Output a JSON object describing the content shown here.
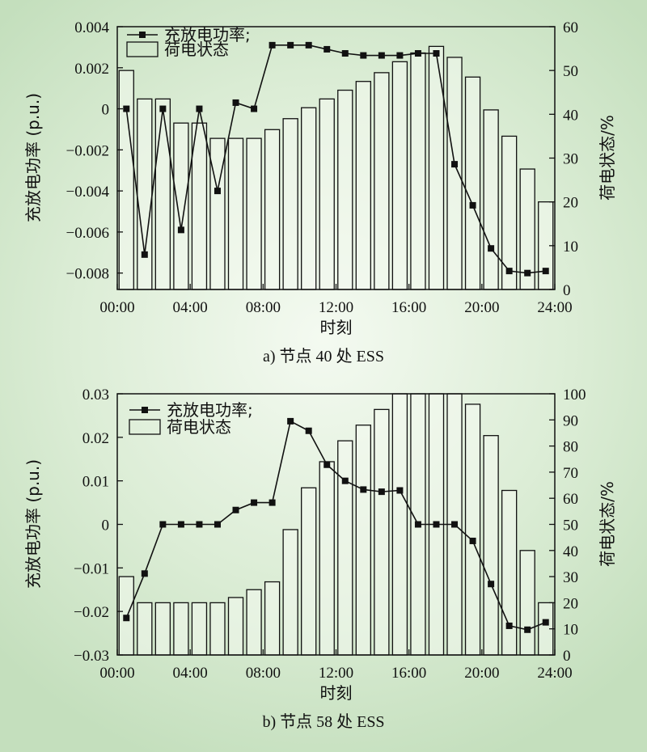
{
  "chart_data": [
    {
      "type": "bar+line",
      "caption": "a) 节点 40 处 ESS",
      "xlabel": "时刻",
      "ylabel_left": "充放电功率 (p.u.)",
      "ylabel_right": "荷电状态/%",
      "x_ticks": [
        "00:00",
        "04:00",
        "08:00",
        "12:00",
        "16:00",
        "20:00",
        "24:00"
      ],
      "xlim": [
        0,
        24
      ],
      "ylim_left": [
        -0.0088,
        0.004
      ],
      "y_ticks_left": [
        "0.004",
        "0.002",
        "0",
        "−0.002",
        "−0.004",
        "−0.006",
        "−0.008"
      ],
      "y_tick_values_left": [
        0.004,
        0.002,
        0,
        -0.002,
        -0.004,
        -0.006,
        -0.008
      ],
      "ylim_right": [
        0,
        60
      ],
      "y_ticks_right": [
        0,
        10,
        20,
        30,
        40,
        50,
        60
      ],
      "legend_position": "top-left",
      "series": [
        {
          "name": "充放电功率;",
          "kind": "line",
          "axis": "left",
          "x": [
            1,
            2,
            3,
            4,
            5,
            6,
            7,
            8,
            9,
            10,
            11,
            12,
            13,
            14,
            15,
            16,
            17,
            18,
            19,
            20,
            21,
            22,
            23,
            24
          ],
          "values": [
            0.0,
            -0.0071,
            0.0,
            -0.0059,
            0.0,
            -0.004,
            0.0003,
            0.0,
            0.0031,
            0.0031,
            0.0031,
            0.0029,
            0.0027,
            0.0026,
            0.0026,
            0.0026,
            0.0027,
            0.0027,
            -0.0027,
            -0.0047,
            -0.0068,
            -0.0079,
            -0.008,
            -0.0079
          ]
        },
        {
          "name": "荷电状态",
          "kind": "bar",
          "axis": "right",
          "x": [
            1,
            2,
            3,
            4,
            5,
            6,
            7,
            8,
            9,
            10,
            11,
            12,
            13,
            14,
            15,
            16,
            17,
            18,
            19,
            20,
            21,
            22,
            23,
            24
          ],
          "values": [
            50,
            43.5,
            43.5,
            38,
            38,
            34.5,
            34.5,
            34.5,
            36.5,
            39,
            41.5,
            43.5,
            45.5,
            47.5,
            49.5,
            52,
            54,
            55.5,
            53,
            48.5,
            41,
            35,
            27.5,
            20
          ]
        }
      ]
    },
    {
      "type": "bar+line",
      "caption": "b) 节点 58 处 ESS",
      "xlabel": "时刻",
      "ylabel_left": "充放电功率 (p.u.)",
      "ylabel_right": "荷电状态/%",
      "x_ticks": [
        "00:00",
        "04:00",
        "08:00",
        "12:00",
        "16:00",
        "20:00",
        "24:00"
      ],
      "xlim": [
        0,
        24
      ],
      "ylim_left": [
        -0.03,
        0.03
      ],
      "y_ticks_left": [
        "0.03",
        "0.02",
        "0.01",
        "0",
        "−0.01",
        "−0.02",
        "−0.03"
      ],
      "y_tick_values_left": [
        0.03,
        0.02,
        0.01,
        0,
        -0.01,
        -0.02,
        -0.03
      ],
      "ylim_right": [
        0,
        100
      ],
      "y_ticks_right": [
        0,
        10,
        20,
        30,
        40,
        50,
        60,
        70,
        80,
        90,
        100
      ],
      "legend_position": "top-left",
      "series": [
        {
          "name": "充放电功率;",
          "kind": "line",
          "axis": "left",
          "x": [
            1,
            2,
            3,
            4,
            5,
            6,
            7,
            8,
            9,
            10,
            11,
            12,
            13,
            14,
            15,
            16,
            17,
            18,
            19,
            20,
            21,
            22,
            23,
            24
          ],
          "values": [
            -0.0215,
            -0.0113,
            0.0,
            0.0,
            0.0,
            0.0,
            0.0033,
            0.005,
            0.005,
            0.0237,
            0.0215,
            0.0137,
            0.01,
            0.008,
            0.0075,
            0.0078,
            0.0,
            0.0,
            0.0,
            -0.0038,
            -0.0137,
            -0.0233,
            -0.0242,
            -0.0225
          ]
        },
        {
          "name": "荷电状态",
          "kind": "bar",
          "axis": "right",
          "x": [
            1,
            2,
            3,
            4,
            5,
            6,
            7,
            8,
            9,
            10,
            11,
            12,
            13,
            14,
            15,
            16,
            17,
            18,
            19,
            20,
            21,
            22,
            23,
            24
          ],
          "values": [
            30,
            20,
            20,
            20,
            20,
            20,
            22,
            25,
            28,
            48,
            64,
            74,
            82,
            88,
            94,
            100,
            100,
            100,
            100,
            96,
            84,
            63,
            40,
            20
          ]
        }
      ]
    }
  ]
}
